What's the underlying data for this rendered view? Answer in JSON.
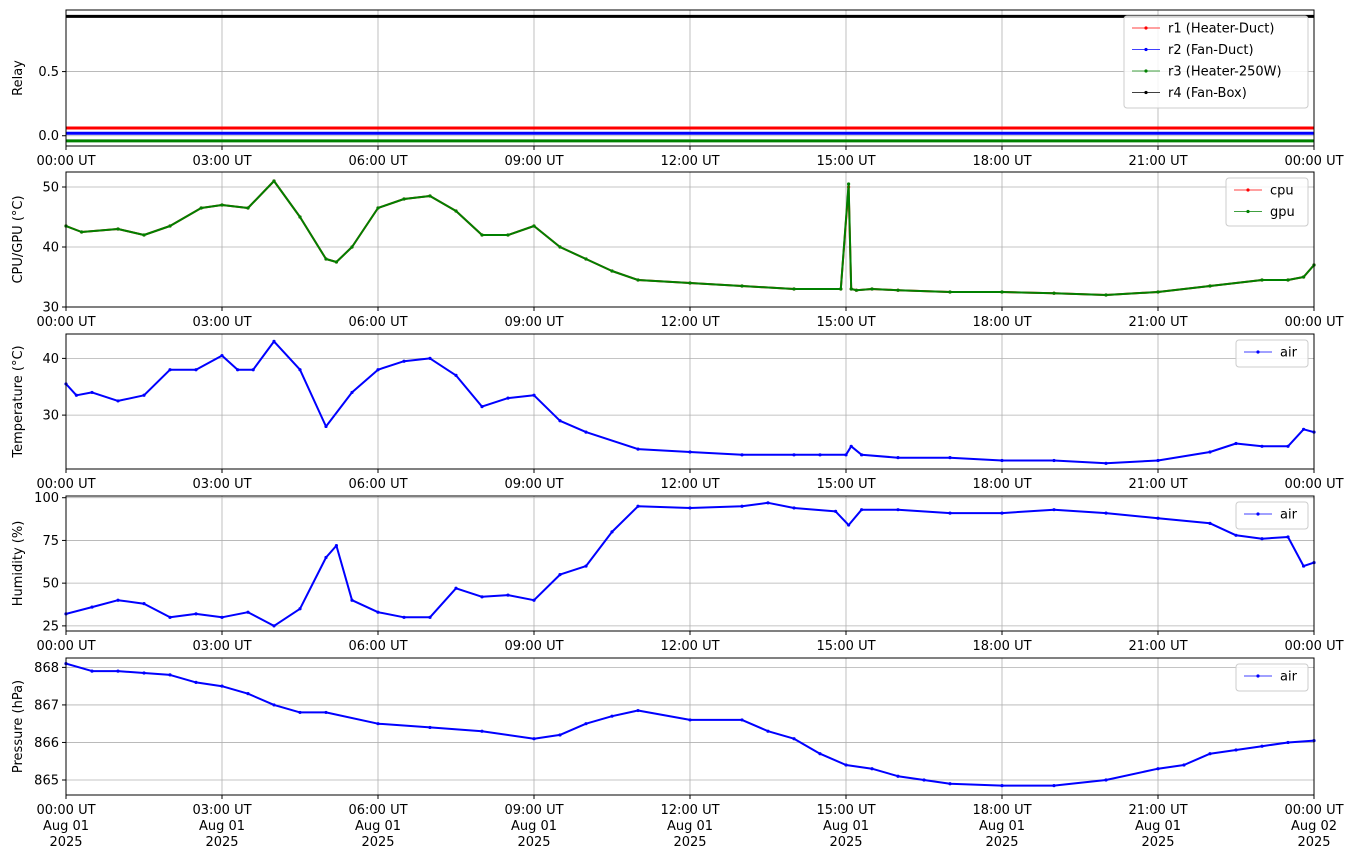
{
  "chart_data": [
    {
      "type": "line",
      "ylabel": "Relay",
      "ylim": [
        -0.08,
        0.98
      ],
      "yticks": [
        0.0,
        0.5
      ],
      "ytick_labels": [
        "0.0",
        "0.5"
      ],
      "xlim": [
        "00:00 UT",
        "24:00 UT"
      ],
      "xticks": [
        "00:00 UT",
        "03:00 UT",
        "06:00 UT",
        "09:00 UT",
        "12:00 UT",
        "15:00 UT",
        "18:00 UT",
        "21:00 UT",
        "00:00 UT"
      ],
      "grid": true,
      "legend_position": "top-right",
      "series": [
        {
          "name": "r1 (Heater-Duct)",
          "color": "#ff0000",
          "x": [
            0,
            24
          ],
          "y": [
            0.06,
            0.06
          ]
        },
        {
          "name": "r2 (Fan-Duct)",
          "color": "#0000ff",
          "x": [
            0,
            24
          ],
          "y": [
            0.02,
            0.02
          ]
        },
        {
          "name": "r3 (Heater-250W)",
          "color": "#008000",
          "x": [
            0,
            24
          ],
          "y": [
            -0.04,
            -0.04
          ]
        },
        {
          "name": "r4 (Fan-Box)",
          "color": "#000000",
          "x": [
            0,
            24
          ],
          "y": [
            0.93,
            0.93
          ]
        }
      ]
    },
    {
      "type": "line",
      "ylabel": "CPU/GPU (°C)",
      "ylim": [
        30,
        52.5
      ],
      "yticks": [
        30,
        40,
        50
      ],
      "ytick_labels": [
        "30",
        "40",
        "50"
      ],
      "xticks": [
        "00:00 UT",
        "03:00 UT",
        "06:00 UT",
        "09:00 UT",
        "12:00 UT",
        "15:00 UT",
        "18:00 UT",
        "21:00 UT",
        "00:00 UT"
      ],
      "grid": true,
      "legend_position": "top-right",
      "series": [
        {
          "name": "cpu",
          "color": "#ff0000",
          "x": [
            0,
            0.3,
            1.0,
            1.5,
            2.0,
            2.6,
            3.0,
            3.5,
            4.0,
            4.5,
            5.0,
            5.2,
            5.5,
            6.0,
            6.5,
            7.0,
            7.5,
            8.0,
            8.5,
            9.0,
            9.5,
            10.0,
            10.5,
            11.0,
            12.0,
            13.0,
            14.0,
            14.9,
            15.05,
            15.1,
            15.2,
            15.5,
            16.0,
            17.0,
            18.0,
            19.0,
            20.0,
            21.0,
            22.0,
            23.0,
            23.5,
            23.8,
            24.0
          ],
          "y": [
            43.5,
            42.5,
            43,
            42,
            43.5,
            46.5,
            47,
            46.5,
            51,
            45,
            38,
            37.5,
            40,
            46.5,
            48,
            48.5,
            46,
            42,
            42,
            43.5,
            40,
            38,
            36,
            34.5,
            34,
            33.5,
            33,
            33,
            50,
            33,
            32.8,
            33,
            32.8,
            32.5,
            32.5,
            32.3,
            32,
            32.5,
            33.5,
            34.5,
            34.5,
            35,
            37
          ]
        },
        {
          "name": "gpu",
          "color": "#008000",
          "x": [
            0,
            0.3,
            1.0,
            1.5,
            2.0,
            2.6,
            3.0,
            3.5,
            4.0,
            4.5,
            5.0,
            5.2,
            5.5,
            6.0,
            6.5,
            7.0,
            7.5,
            8.0,
            8.5,
            9.0,
            9.5,
            10.0,
            10.5,
            11.0,
            12.0,
            13.0,
            14.0,
            14.9,
            15.05,
            15.1,
            15.2,
            15.5,
            16.0,
            17.0,
            18.0,
            19.0,
            20.0,
            21.0,
            22.0,
            23.0,
            23.5,
            23.8,
            24.0
          ],
          "y": [
            43.5,
            42.5,
            43,
            42,
            43.5,
            46.5,
            47,
            46.5,
            51,
            45,
            38,
            37.5,
            40,
            46.5,
            48,
            48.5,
            46,
            42,
            42,
            43.5,
            40,
            38,
            36,
            34.5,
            34,
            33.5,
            33,
            33,
            50.5,
            33,
            32.8,
            33,
            32.8,
            32.5,
            32.5,
            32.3,
            32,
            32.5,
            33.5,
            34.5,
            34.5,
            35,
            37
          ]
        }
      ]
    },
    {
      "type": "line",
      "ylabel": "Temperature (°C)",
      "ylim": [
        20.5,
        44.3
      ],
      "yticks": [
        30,
        40
      ],
      "ytick_labels": [
        "30",
        "40"
      ],
      "xticks": [
        "00:00 UT",
        "03:00 UT",
        "06:00 UT",
        "09:00 UT",
        "12:00 UT",
        "15:00 UT",
        "18:00 UT",
        "21:00 UT",
        "00:00 UT"
      ],
      "grid": true,
      "legend_position": "top-right",
      "series": [
        {
          "name": "air",
          "color": "#0000ff",
          "x": [
            0,
            0.2,
            0.5,
            1.0,
            1.5,
            2.0,
            2.5,
            3.0,
            3.3,
            3.6,
            4.0,
            4.5,
            5.0,
            5.5,
            6.0,
            6.5,
            7.0,
            7.5,
            8.0,
            8.5,
            9.0,
            9.5,
            10.0,
            11.0,
            12.0,
            13.0,
            14.0,
            14.5,
            15.0,
            15.1,
            15.3,
            16.0,
            17.0,
            18.0,
            19.0,
            20.0,
            21.0,
            22.0,
            22.5,
            23.0,
            23.5,
            23.8,
            24.0
          ],
          "y": [
            35.5,
            33.5,
            34,
            32.5,
            33.5,
            38,
            38,
            40.5,
            38,
            38,
            43,
            38,
            28,
            34,
            38,
            39.5,
            40,
            37,
            31.5,
            33,
            33.5,
            29,
            27,
            24,
            23.5,
            23,
            23,
            23,
            23,
            24.5,
            23,
            22.5,
            22.5,
            22,
            22,
            21.5,
            22,
            23.5,
            25,
            24.5,
            24.5,
            27.5,
            27
          ]
        }
      ]
    },
    {
      "type": "line",
      "ylabel": "Humidity (%)",
      "ylim": [
        22,
        101
      ],
      "yticks": [
        25,
        50,
        75,
        100
      ],
      "ytick_labels": [
        "25",
        "50",
        "75",
        "100"
      ],
      "xticks": [
        "00:00 UT",
        "03:00 UT",
        "06:00 UT",
        "09:00 UT",
        "12:00 UT",
        "15:00 UT",
        "18:00 UT",
        "21:00 UT",
        "00:00 UT"
      ],
      "grid": true,
      "legend_position": "top-right",
      "series": [
        {
          "name": "air",
          "color": "#0000ff",
          "x": [
            0,
            0.5,
            1.0,
            1.5,
            2.0,
            2.5,
            3.0,
            3.5,
            4.0,
            4.5,
            5.0,
            5.2,
            5.5,
            6.0,
            6.5,
            7.0,
            7.5,
            8.0,
            8.5,
            9.0,
            9.5,
            10.0,
            10.5,
            11.0,
            12.0,
            13.0,
            13.5,
            14.0,
            14.8,
            15.05,
            15.3,
            16.0,
            17.0,
            18.0,
            19.0,
            20.0,
            21.0,
            22.0,
            22.5,
            23.0,
            23.5,
            23.8,
            24.0
          ],
          "y": [
            32,
            36,
            40,
            38,
            30,
            32,
            30,
            33,
            25,
            35,
            65,
            72,
            40,
            33,
            30,
            30,
            47,
            42,
            43,
            40,
            55,
            60,
            80,
            95,
            94,
            95,
            97,
            94,
            92,
            84,
            93,
            93,
            91,
            91,
            93,
            91,
            88,
            85,
            78,
            76,
            77,
            60,
            62
          ]
        }
      ]
    },
    {
      "type": "line",
      "ylabel": "Pressure (hPa)",
      "ylim": [
        864.6,
        868.25
      ],
      "yticks": [
        865,
        866,
        867,
        868
      ],
      "ytick_labels": [
        "865",
        "866",
        "867",
        "868"
      ],
      "xticks": [
        "00:00 UT\nAug 01\n2025",
        "03:00 UT\nAug 01\n2025",
        "06:00 UT\nAug 01\n2025",
        "09:00 UT\nAug 01\n2025",
        "12:00 UT\nAug 01\n2025",
        "15:00 UT\nAug 01\n2025",
        "18:00 UT\nAug 01\n2025",
        "21:00 UT\nAug 01\n2025",
        "00:00 UT\nAug 02\n2025"
      ],
      "grid": true,
      "legend_position": "top-right",
      "series": [
        {
          "name": "air",
          "color": "#0000ff",
          "x": [
            0,
            0.5,
            1.0,
            1.5,
            2.0,
            2.5,
            3.0,
            3.5,
            4.0,
            4.5,
            5.0,
            6.0,
            7.0,
            8.0,
            9.0,
            9.5,
            10.0,
            10.5,
            11.0,
            12.0,
            13.0,
            13.5,
            14.0,
            14.5,
            15.0,
            15.5,
            16.0,
            16.5,
            17.0,
            18.0,
            19.0,
            20.0,
            21.0,
            21.5,
            22.0,
            22.5,
            23.0,
            23.5,
            24.0
          ],
          "y": [
            868.1,
            867.9,
            867.9,
            867.85,
            867.8,
            867.6,
            867.5,
            867.3,
            867.0,
            866.8,
            866.8,
            866.5,
            866.4,
            866.3,
            866.1,
            866.2,
            866.5,
            866.7,
            866.85,
            866.6,
            866.6,
            866.3,
            866.1,
            865.7,
            865.4,
            865.3,
            865.1,
            865.0,
            864.9,
            864.85,
            864.85,
            865.0,
            865.3,
            865.4,
            865.7,
            865.8,
            865.9,
            866.0,
            866.05
          ]
        }
      ]
    }
  ]
}
